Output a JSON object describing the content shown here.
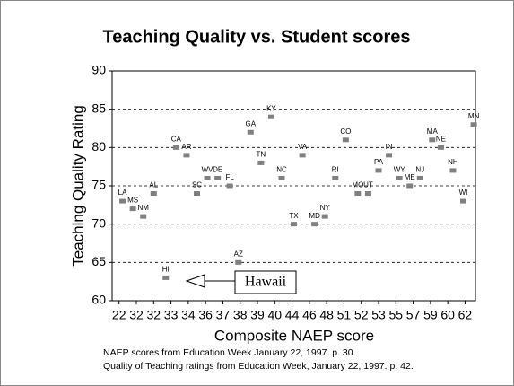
{
  "chart_data": {
    "type": "scatter",
    "title": "Teaching Quality vs. Student scores",
    "x_label": "Composite NAEP score",
    "y_label": "Teaching Quality Rating",
    "point_labels": [
      "LA",
      "MS",
      "NM",
      "AL",
      "CA",
      "AR",
      "SC",
      "WV",
      "DE",
      "FL",
      "AZ",
      "GA",
      "TN",
      "KY",
      "NC",
      "TX",
      "VA",
      "MD",
      "NY",
      "RI",
      "CO",
      "MO",
      "UT",
      "PA",
      "IN",
      "WY",
      "ME",
      "NJ",
      "MA",
      "NE",
      "NH",
      "WI",
      "MN",
      "HI"
    ],
    "x": [
      0.2,
      0.8,
      1.4,
      2.0,
      3.3,
      3.9,
      4.5,
      5.1,
      5.7,
      6.4,
      6.9,
      7.6,
      8.2,
      8.8,
      9.4,
      10.1,
      10.6,
      11.3,
      11.9,
      12.5,
      13.1,
      13.8,
      14.4,
      15.0,
      15.6,
      16.2,
      16.8,
      17.4,
      18.1,
      18.6,
      19.3,
      19.9,
      20.5,
      2.7
    ],
    "values": [
      73,
      72,
      71,
      74,
      80,
      79,
      74,
      76,
      76,
      75,
      65,
      82,
      78,
      84,
      76,
      70,
      79,
      70,
      71,
      76,
      81,
      74,
      74,
      77,
      79,
      76,
      75,
      76,
      81,
      80,
      77,
      73,
      83,
      63
    ],
    "color": "#808080",
    "xlim": [
      -0.4,
      20.6
    ],
    "xticks": [
      {
        "value": 0,
        "label": "22"
      },
      {
        "value": 1,
        "label": "32"
      },
      {
        "value": 2,
        "label": "32"
      },
      {
        "value": 3,
        "label": "33"
      },
      {
        "value": 4,
        "label": "34"
      },
      {
        "value": 5,
        "label": "36"
      },
      {
        "value": 6,
        "label": "37"
      },
      {
        "value": 7,
        "label": "38"
      },
      {
        "value": 8,
        "label": "39"
      },
      {
        "value": 9,
        "label": "40"
      },
      {
        "value": 10,
        "label": "44"
      },
      {
        "value": 11,
        "label": "46"
      },
      {
        "value": 12,
        "label": "48"
      },
      {
        "value": 13,
        "label": "51"
      },
      {
        "value": 14,
        "label": "52"
      },
      {
        "value": 15,
        "label": "53"
      },
      {
        "value": 16,
        "label": "55"
      },
      {
        "value": 17,
        "label": "57"
      },
      {
        "value": 18,
        "label": "59"
      },
      {
        "value": 19,
        "label": "60"
      },
      {
        "value": 20,
        "label": "62"
      }
    ],
    "ylim": [
      60,
      90
    ],
    "yticks": [
      60,
      65,
      70,
      75,
      80,
      85,
      90
    ],
    "grid": true,
    "annotation": "Hawaii",
    "notes": [
      "NAEP scores from Education Week January 22, 1997. p. 30.",
      "Quality of Teaching ratings from Education Week, January 22, 1997. p. 42."
    ]
  }
}
